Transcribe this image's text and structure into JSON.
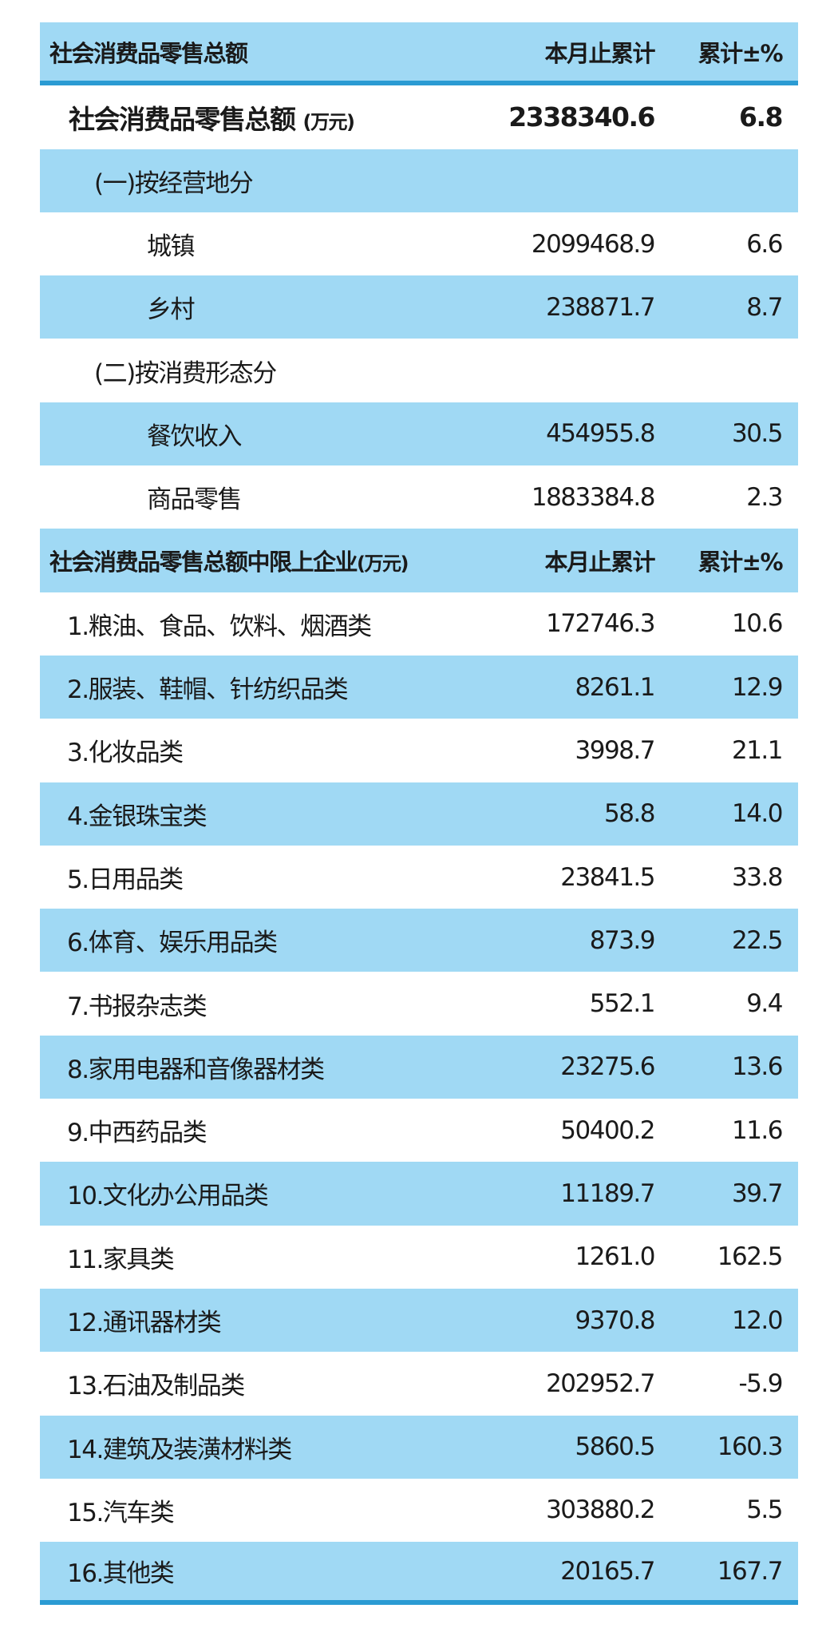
{
  "header1": {
    "label": "社会消费品零售总额",
    "col1": "本月止累计",
    "col2": "累计±%"
  },
  "total": {
    "label": "社会消费品零售总额",
    "unit": "(万元)",
    "value": "2338340.6",
    "pct": "6.8"
  },
  "section1": {
    "label": "(一)按经营地分",
    "rows": [
      {
        "label": "城镇",
        "value": "2099468.9",
        "pct": "6.6"
      },
      {
        "label": "乡村",
        "value": "238871.7",
        "pct": "8.7"
      }
    ]
  },
  "section2": {
    "label": "(二)按消费形态分",
    "rows": [
      {
        "label": "餐饮收入",
        "value": "454955.8",
        "pct": "30.5"
      },
      {
        "label": "商品零售",
        "value": "1883384.8",
        "pct": "2.3"
      }
    ]
  },
  "header2": {
    "label": "社会消费品零售总额中限上企业",
    "unit": "(万元)",
    "col1": "本月止累计",
    "col2": "累计±%"
  },
  "items": [
    {
      "label": "1.粮油、食品、饮料、烟酒类",
      "value": "172746.3",
      "pct": "10.6"
    },
    {
      "label": "2.服装、鞋帽、针纺织品类",
      "value": "8261.1",
      "pct": "12.9"
    },
    {
      "label": "3.化妆品类",
      "value": "3998.7",
      "pct": "21.1"
    },
    {
      "label": "4.金银珠宝类",
      "value": "58.8",
      "pct": "14.0"
    },
    {
      "label": "5.日用品类",
      "value": "23841.5",
      "pct": "33.8"
    },
    {
      "label": "6.体育、娱乐用品类",
      "value": "873.9",
      "pct": "22.5"
    },
    {
      "label": "7.书报杂志类",
      "value": "552.1",
      "pct": "9.4"
    },
    {
      "label": "8.家用电器和音像器材类",
      "value": "23275.6",
      "pct": "13.6"
    },
    {
      "label": "9.中西药品类",
      "value": "50400.2",
      "pct": "11.6"
    },
    {
      "label": "10.文化办公用品类",
      "value": "11189.7",
      "pct": "39.7"
    },
    {
      "label": "11.家具类",
      "value": "1261.0",
      "pct": "162.5"
    },
    {
      "label": "12.通讯器材类",
      "value": "9370.8",
      "pct": "12.0"
    },
    {
      "label": "13.石油及制品类",
      "value": "202952.7",
      "pct": "-5.9"
    },
    {
      "label": "14.建筑及装潢材料类",
      "value": "5860.5",
      "pct": "160.3"
    },
    {
      "label": "15.汽车类",
      "value": "303880.2",
      "pct": "5.5"
    },
    {
      "label": "16.其他类",
      "value": "20165.7",
      "pct": "167.7"
    }
  ],
  "colors": {
    "row_blue": "#a0d9f4",
    "rule_blue": "#2b9bd3"
  }
}
